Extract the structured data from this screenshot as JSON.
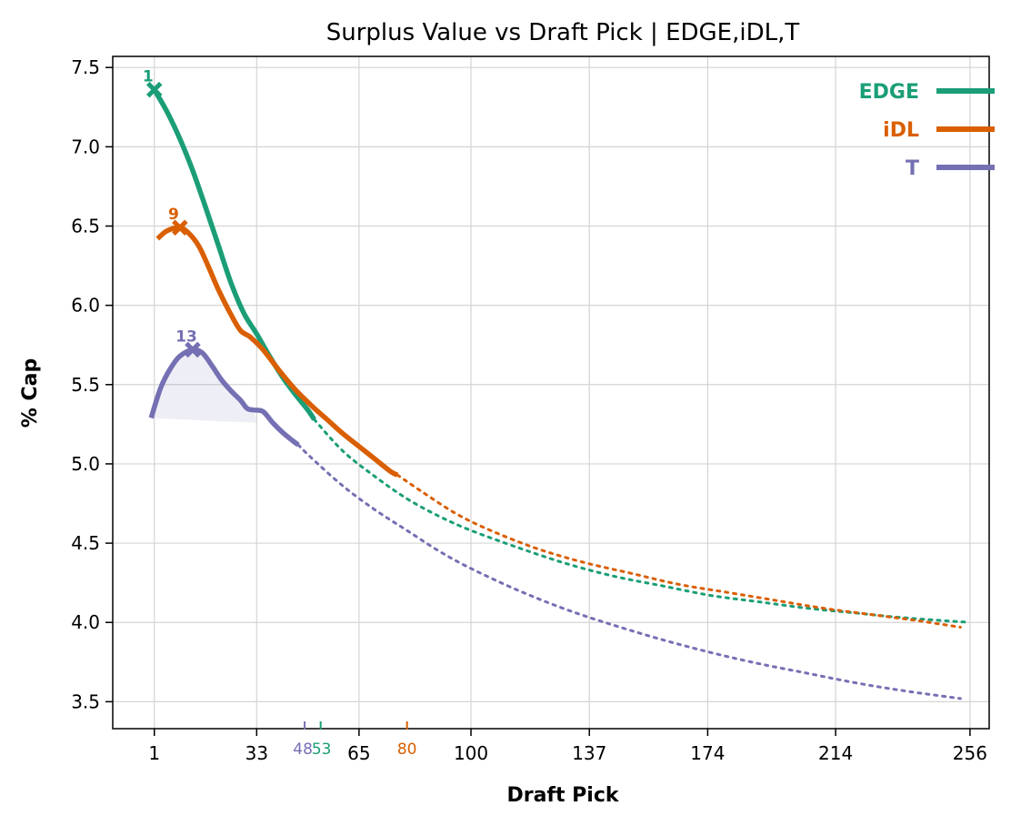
{
  "chart_data": {
    "type": "line",
    "title": "Surplus Value vs Draft Pick | EDGE,iDL,T",
    "xlabel": "Draft Pick",
    "ylabel": "% Cap",
    "xlim": [
      -12,
      262
    ],
    "ylim": [
      3.33,
      7.57
    ],
    "x_ticks": [
      1,
      33,
      65,
      100,
      137,
      174,
      214,
      256
    ],
    "x_tick_labels": [
      "1",
      "33",
      "65",
      "100",
      "137",
      "174",
      "214",
      "256"
    ],
    "y_ticks": [
      3.5,
      4.0,
      4.5,
      5.0,
      5.5,
      6.0,
      6.5,
      7.0,
      7.5
    ],
    "y_tick_labels": [
      "3.5",
      "4.0",
      "4.5",
      "5.0",
      "5.5",
      "6.0",
      "6.5",
      "7.0",
      "7.5"
    ],
    "grid": true,
    "legend_position": "top-right",
    "series": [
      {
        "name": "EDGE",
        "color": "#1b9e77",
        "peak_pick": 1,
        "peak_value": 7.36,
        "peak_label": "1",
        "cutoff_pick": 53,
        "cutoff_label": "53",
        "solid": [
          [
            1,
            7.36
          ],
          [
            5,
            7.22
          ],
          [
            9,
            7.05
          ],
          [
            13,
            6.85
          ],
          [
            17,
            6.62
          ],
          [
            21,
            6.38
          ],
          [
            25,
            6.14
          ],
          [
            29,
            5.95
          ],
          [
            33,
            5.82
          ],
          [
            37,
            5.68
          ],
          [
            41,
            5.55
          ],
          [
            45,
            5.44
          ],
          [
            49,
            5.34
          ],
          [
            51,
            5.28
          ]
        ],
        "dotted": [
          [
            51,
            5.28
          ],
          [
            60,
            5.08
          ],
          [
            70,
            4.92
          ],
          [
            80,
            4.78
          ],
          [
            90,
            4.67
          ],
          [
            100,
            4.58
          ],
          [
            115,
            4.47
          ],
          [
            130,
            4.37
          ],
          [
            145,
            4.29
          ],
          [
            160,
            4.23
          ],
          [
            175,
            4.17
          ],
          [
            190,
            4.13
          ],
          [
            205,
            4.09
          ],
          [
            220,
            4.06
          ],
          [
            235,
            4.03
          ],
          [
            256,
            4.0
          ]
        ]
      },
      {
        "name": "iDL",
        "color": "#d95f02",
        "peak_pick": 9,
        "peak_value": 6.49,
        "peak_label": "9",
        "cutoff_pick": 80,
        "cutoff_label": "80",
        "solid": [
          [
            2,
            6.42
          ],
          [
            5,
            6.47
          ],
          [
            9,
            6.49
          ],
          [
            12,
            6.45
          ],
          [
            15,
            6.37
          ],
          [
            18,
            6.24
          ],
          [
            21,
            6.1
          ],
          [
            25,
            5.94
          ],
          [
            28,
            5.84
          ],
          [
            31,
            5.8
          ],
          [
            35,
            5.72
          ],
          [
            40,
            5.59
          ],
          [
            45,
            5.47
          ],
          [
            50,
            5.37
          ],
          [
            55,
            5.28
          ],
          [
            60,
            5.19
          ],
          [
            65,
            5.11
          ],
          [
            70,
            5.03
          ],
          [
            75,
            4.95
          ],
          [
            77,
            4.93
          ]
        ],
        "dotted": [
          [
            77,
            4.93
          ],
          [
            85,
            4.82
          ],
          [
            95,
            4.69
          ],
          [
            105,
            4.59
          ],
          [
            120,
            4.47
          ],
          [
            135,
            4.38
          ],
          [
            150,
            4.31
          ],
          [
            165,
            4.24
          ],
          [
            180,
            4.19
          ],
          [
            195,
            4.14
          ],
          [
            210,
            4.09
          ],
          [
            225,
            4.05
          ],
          [
            240,
            4.01
          ],
          [
            253,
            3.97
          ]
        ]
      },
      {
        "name": "T",
        "color": "#7570b3",
        "peak_pick": 13,
        "peak_value": 5.72,
        "peak_label": "13",
        "cutoff_pick": 48,
        "cutoff_label": "48",
        "solid": [
          [
            0,
            5.29
          ],
          [
            3,
            5.48
          ],
          [
            6,
            5.6
          ],
          [
            9,
            5.68
          ],
          [
            13,
            5.72
          ],
          [
            16,
            5.7
          ],
          [
            19,
            5.62
          ],
          [
            22,
            5.53
          ],
          [
            25,
            5.46
          ],
          [
            28,
            5.4
          ],
          [
            30,
            5.35
          ],
          [
            32,
            5.34
          ],
          [
            35,
            5.33
          ],
          [
            38,
            5.26
          ],
          [
            41,
            5.2
          ],
          [
            44,
            5.15
          ],
          [
            46,
            5.12
          ]
        ],
        "dotted": [
          [
            46,
            5.12
          ],
          [
            50,
            5.04
          ],
          [
            60,
            4.86
          ],
          [
            70,
            4.71
          ],
          [
            80,
            4.58
          ],
          [
            90,
            4.45
          ],
          [
            100,
            4.34
          ],
          [
            115,
            4.2
          ],
          [
            130,
            4.08
          ],
          [
            145,
            3.98
          ],
          [
            160,
            3.89
          ],
          [
            175,
            3.81
          ],
          [
            190,
            3.74
          ],
          [
            205,
            3.68
          ],
          [
            220,
            3.62
          ],
          [
            235,
            3.57
          ],
          [
            253,
            3.52
          ]
        ],
        "band_lower": [
          [
            0,
            5.29
          ],
          [
            10,
            5.28
          ],
          [
            20,
            5.27
          ],
          [
            33,
            5.26
          ]
        ]
      }
    ]
  }
}
